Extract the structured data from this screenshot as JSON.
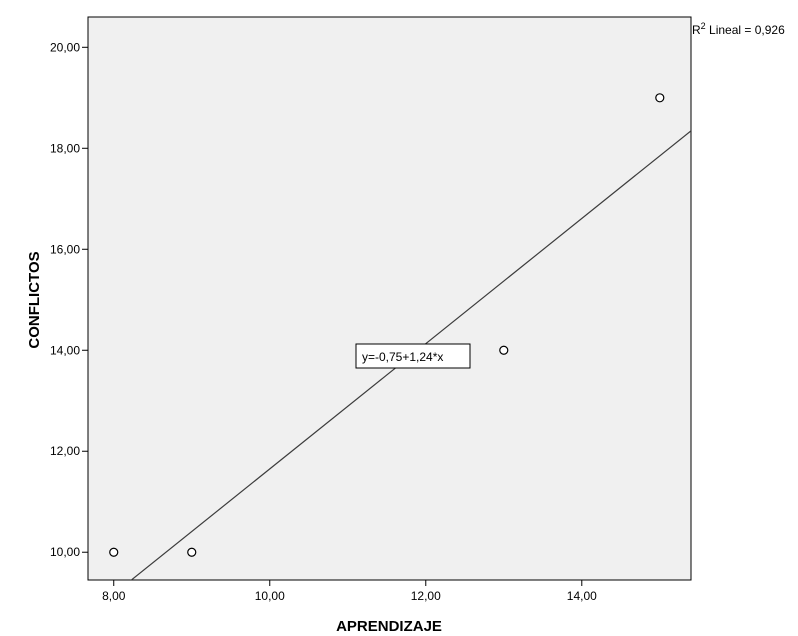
{
  "chart_data": {
    "type": "scatter",
    "xlabel": "APRENDIZAJE",
    "ylabel": "CONFLICTOS",
    "xlim": [
      7.67,
      15.4
    ],
    "ylim": [
      9.45,
      20.6
    ],
    "x_ticks": [
      8,
      10,
      12,
      14
    ],
    "x_tick_labels": [
      "8,00",
      "10,00",
      "12,00",
      "14,00"
    ],
    "y_ticks": [
      10,
      12,
      14,
      16,
      18,
      20
    ],
    "y_tick_labels": [
      "10,00",
      "12,00",
      "14,00",
      "16,00",
      "18,00",
      "20,00"
    ],
    "points": [
      {
        "x": 8,
        "y": 10
      },
      {
        "x": 9,
        "y": 10
      },
      {
        "x": 13,
        "y": 14
      },
      {
        "x": 15,
        "y": 19
      }
    ],
    "fit_line": {
      "intercept": -0.75,
      "slope": 1.24
    },
    "equation_label": "y=-0,75+1,24*x",
    "r2_label": {
      "prefix": "R",
      "superscript": "2",
      "text": " Lineal = 0,926"
    },
    "colors": {
      "plot_background": "#f0f0f0",
      "line": "#3c3c3c",
      "marker_fill": "#ffffff",
      "marker_stroke": "#000000"
    }
  }
}
